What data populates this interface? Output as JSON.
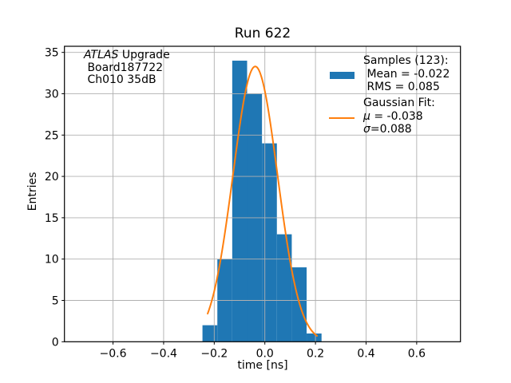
{
  "chart_data": {
    "type": "bar",
    "subtype": "histogram-with-gaussian-fit",
    "title": "Run 622",
    "xlabel": "time [ns]",
    "ylabel": "Entries",
    "xlim": [
      -0.792,
      0.773
    ],
    "ylim": [
      0,
      35.74
    ],
    "xticks": [
      -0.6,
      -0.4,
      -0.2,
      0.0,
      0.2,
      0.4,
      0.6
    ],
    "yticks": [
      0,
      5,
      10,
      15,
      20,
      25,
      30,
      35
    ],
    "grid": true,
    "histogram": {
      "name": "Samples",
      "n_samples": 123,
      "mean": -0.022,
      "rms": 0.085,
      "color": "#1f77b4",
      "bin_edges": [
        -0.2465,
        -0.1877,
        -0.1289,
        -0.0701,
        -0.0113,
        0.0475,
        0.1063,
        0.1651,
        0.224
      ],
      "counts": [
        2,
        10,
        34,
        30,
        24,
        13,
        9,
        1
      ]
    },
    "gaussian_fit": {
      "name": "Gaussian Fit",
      "mu": -0.038,
      "sigma": 0.088,
      "amplitude": 33.3,
      "color": "#ff7f0e",
      "x_range": [
        -0.226,
        0.206
      ]
    },
    "annotation": {
      "line1_italic": "ATLAS",
      "line1_rest": " Upgrade",
      "line2": " Board187722",
      "line3": " Ch010 35dB"
    },
    "legend": {
      "samples_title": "Samples (123):",
      "samples_mean": " Mean = -0.022",
      "samples_rms": " RMS = 0.085",
      "fit_title": "Gaussian Fit:",
      "fit_mu_symbol": "μ",
      "fit_mu_rest": " = -0.038",
      "fit_sigma_symbol": "σ",
      "fit_sigma_rest": "=0.088"
    },
    "colors": {
      "grid": "#b0b0b0",
      "axis": "#000000",
      "text": "#000000",
      "background": "#ffffff"
    }
  }
}
